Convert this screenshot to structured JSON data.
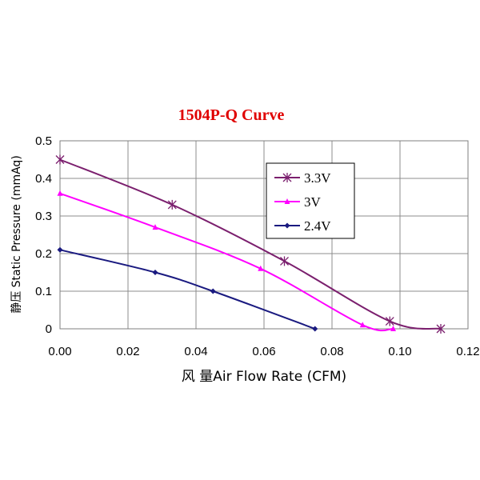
{
  "chart_data": {
    "type": "line",
    "title": "1504P-Q Curve",
    "xlabel": "风 量Air Flow Rate (CFM)",
    "ylabel": "静压 Static Pressure (mmAq)",
    "xlim": [
      0,
      0.12
    ],
    "ylim": [
      0,
      0.5
    ],
    "x_ticks": [
      "0.00",
      "0.02",
      "0.04",
      "0.06",
      "0.08",
      "0.10",
      "0.12"
    ],
    "y_ticks": [
      "0",
      "0.1",
      "0.2",
      "0.3",
      "0.4",
      "0.5"
    ],
    "grid": true,
    "legend_position": "top-right",
    "series": [
      {
        "name": "3.3V",
        "color": "#7b1f6e",
        "marker": "asterisk",
        "points": [
          [
            0.0,
            0.45
          ],
          [
            0.033,
            0.33
          ],
          [
            0.066,
            0.18
          ],
          [
            0.097,
            0.02
          ],
          [
            0.112,
            0.0
          ]
        ]
      },
      {
        "name": "3V",
        "color": "#ff00ff",
        "marker": "triangle",
        "points": [
          [
            0.0,
            0.36
          ],
          [
            0.028,
            0.27
          ],
          [
            0.059,
            0.16
          ],
          [
            0.089,
            0.01
          ],
          [
            0.098,
            0.0
          ]
        ]
      },
      {
        "name": "2.4V",
        "color": "#1a1a80",
        "marker": "diamond",
        "points": [
          [
            0.0,
            0.21
          ],
          [
            0.028,
            0.15
          ],
          [
            0.045,
            0.1
          ],
          [
            0.075,
            0.0
          ]
        ]
      }
    ]
  }
}
